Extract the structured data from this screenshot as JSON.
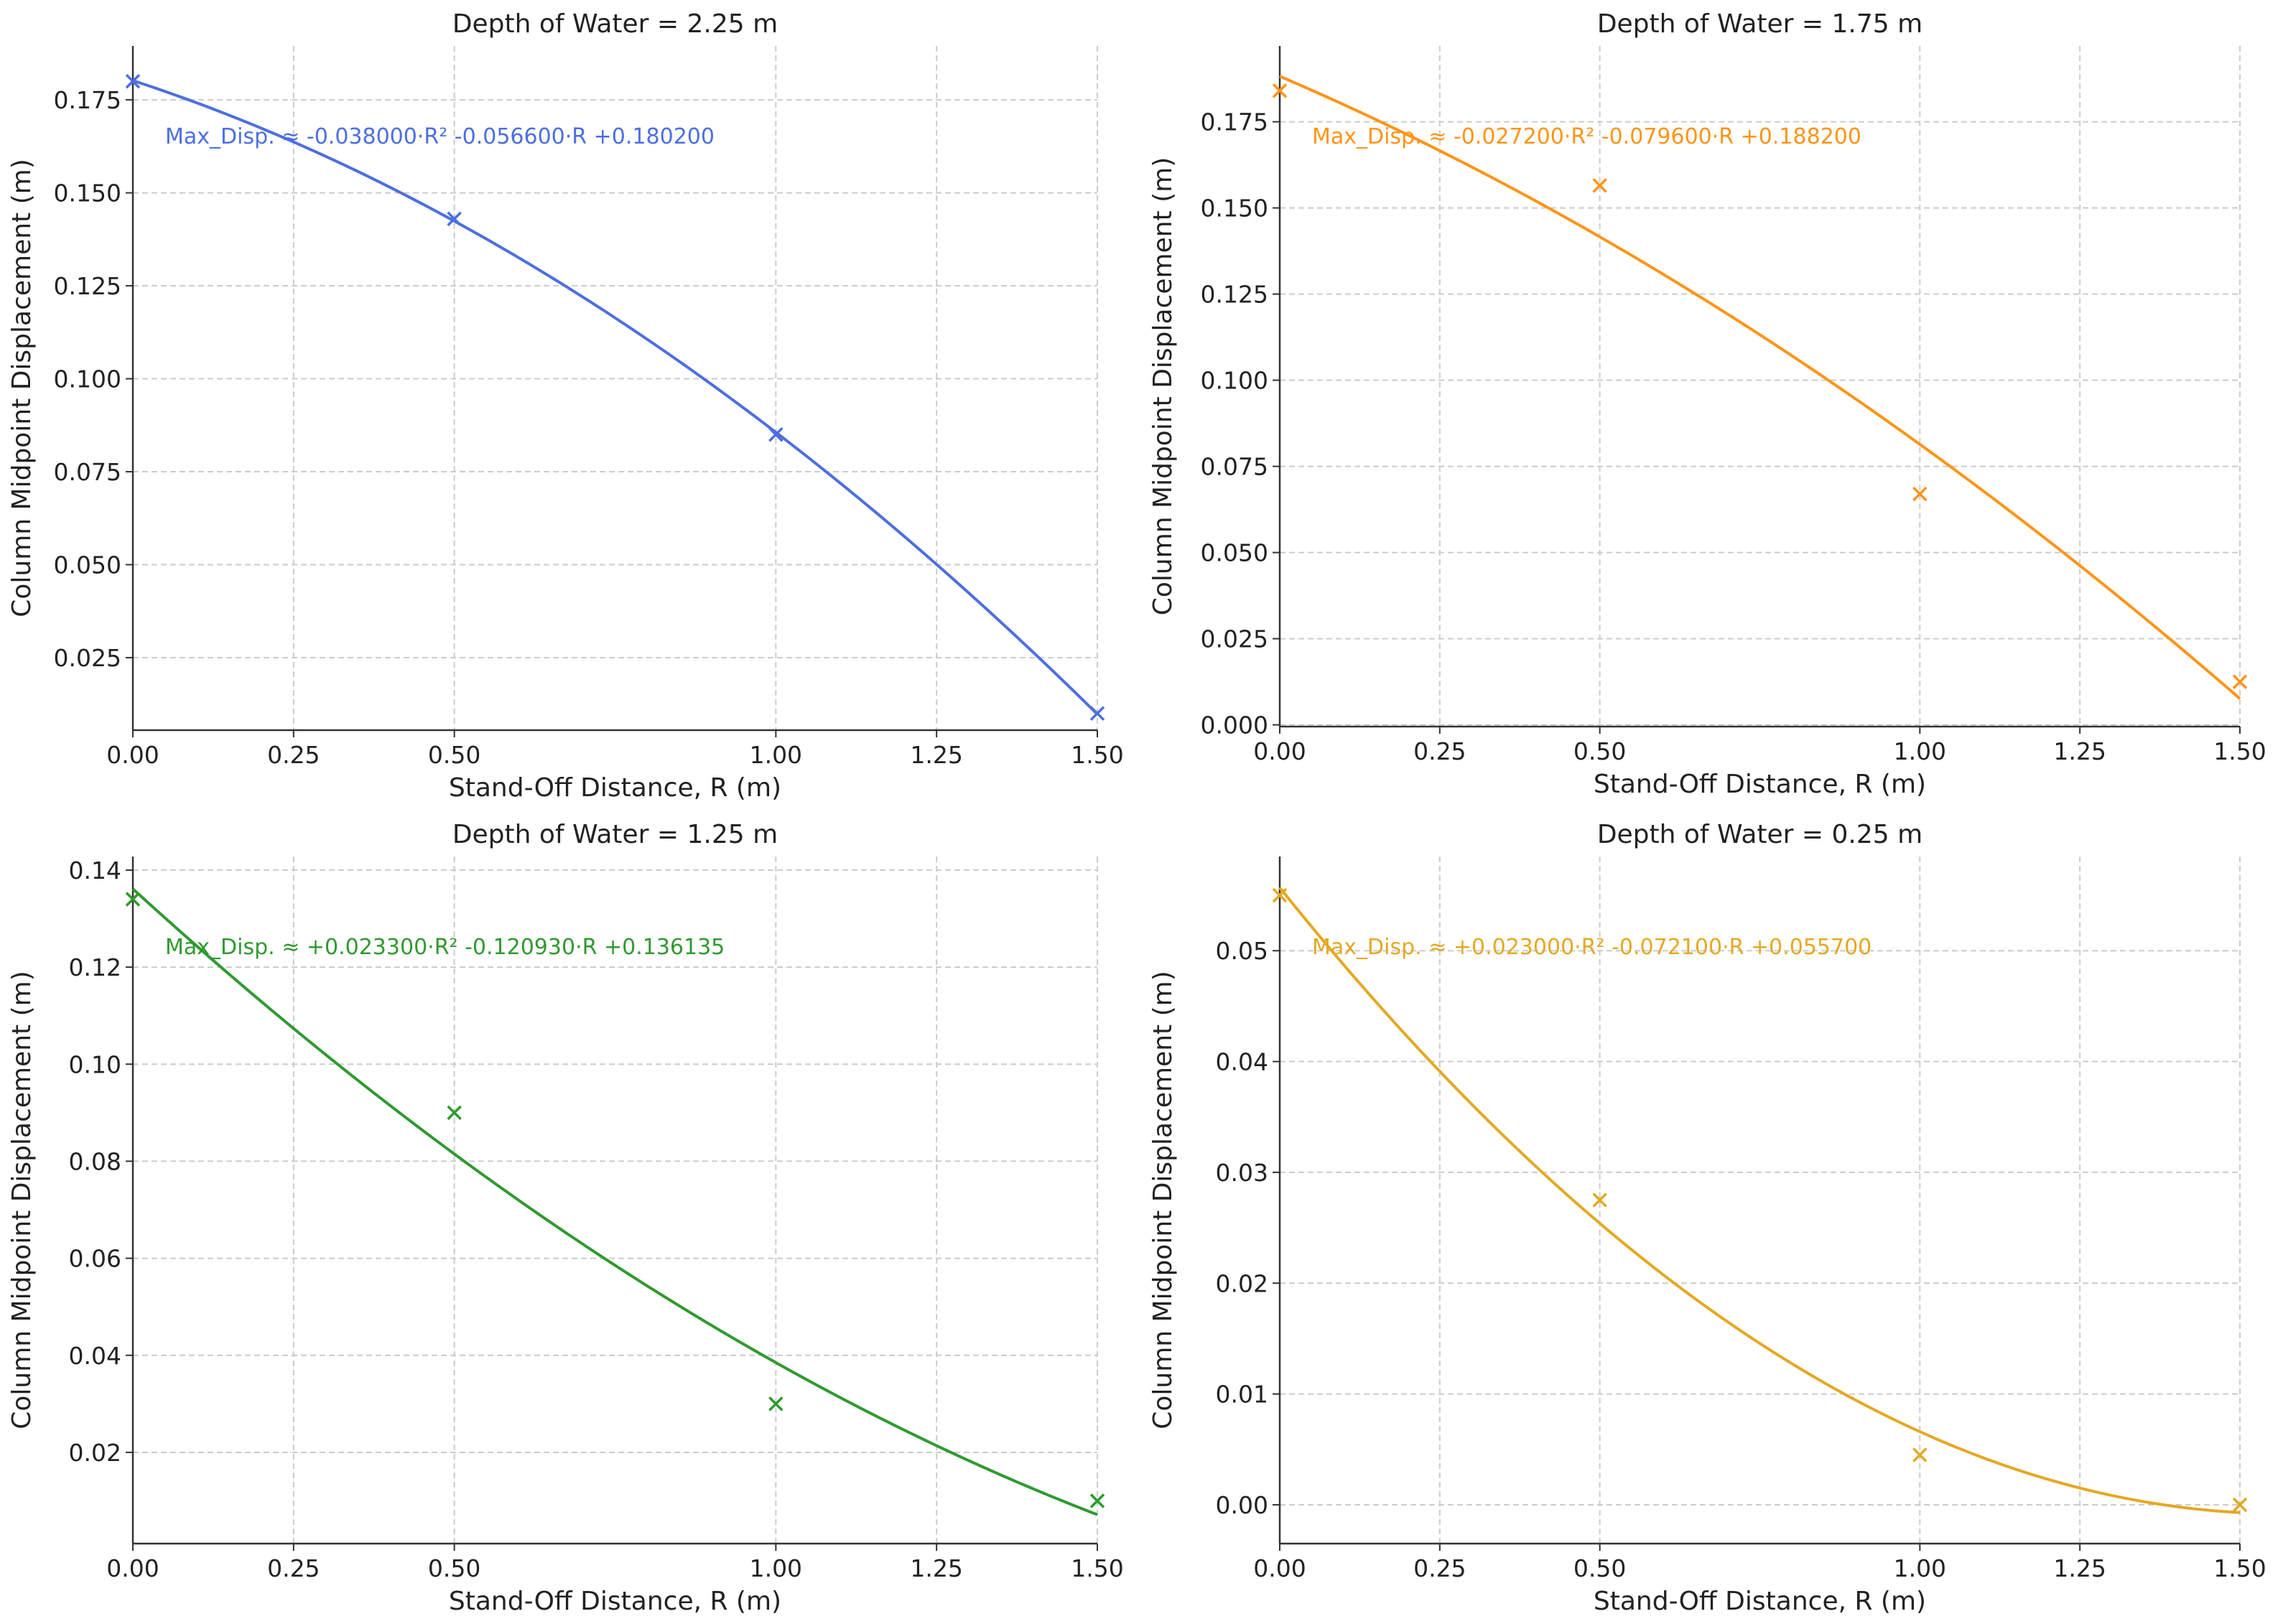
{
  "chart_data": [
    {
      "type": "scatter",
      "title": "Depth of Water = 2.25 m",
      "xlabel": "Stand-Off Distance, R (m)",
      "ylabel": "Column Midpoint Displacement (m)",
      "color": "#4c6fe0",
      "xlim": [
        0,
        1.5
      ],
      "ylim": [
        0.0055,
        0.1895
      ],
      "xticks": [
        0,
        0.25,
        0.5,
        1.0,
        1.25,
        1.5
      ],
      "xtick_labels": [
        "0.00",
        "0.25",
        "0.50",
        "1.00",
        "1.25",
        "1.50"
      ],
      "yticks": [
        0.025,
        0.05,
        0.075,
        0.1,
        0.125,
        0.15,
        0.175
      ],
      "ytick_labels": [
        "0.025",
        "0.050",
        "0.075",
        "0.100",
        "0.125",
        "0.150",
        "0.175"
      ],
      "points": [
        {
          "x": 0.0,
          "y": 0.18
        },
        {
          "x": 0.5,
          "y": 0.143
        },
        {
          "x": 1.0,
          "y": 0.085
        },
        {
          "x": 1.5,
          "y": 0.01
        }
      ],
      "fit": {
        "a": -0.038,
        "b": -0.0566,
        "c": 0.1802
      },
      "equation": "Max_Disp. ≈ -0.038000·R² -0.056600·R +0.180200"
    },
    {
      "type": "scatter",
      "title": "Depth of Water = 1.75 m",
      "xlabel": "Stand-Off Distance, R (m)",
      "ylabel": "Column Midpoint Displacement (m)",
      "color": "#ff9416",
      "xlim": [
        0,
        1.5
      ],
      "ylim": [
        -0.0005,
        0.197
      ],
      "xticks": [
        0,
        0.25,
        0.5,
        1.0,
        1.25,
        1.5
      ],
      "xtick_labels": [
        "0.00",
        "0.25",
        "0.50",
        "1.00",
        "1.25",
        "1.50"
      ],
      "yticks": [
        0.0,
        0.025,
        0.05,
        0.075,
        0.1,
        0.125,
        0.15,
        0.175
      ],
      "ytick_labels": [
        "0.000",
        "0.025",
        "0.050",
        "0.075",
        "0.100",
        "0.125",
        "0.150",
        "0.175"
      ],
      "points": [
        {
          "x": 0.0,
          "y": 0.184
        },
        {
          "x": 0.5,
          "y": 0.1565
        },
        {
          "x": 1.0,
          "y": 0.067
        },
        {
          "x": 1.5,
          "y": 0.0125
        }
      ],
      "fit": {
        "a": -0.0272,
        "b": -0.0796,
        "c": 0.1882
      },
      "equation": "Max_Disp. ≈ -0.027200·R² -0.079600·R +0.188200"
    },
    {
      "type": "scatter",
      "title": "Depth of Water = 1.25 m",
      "xlabel": "Stand-Off Distance, R (m)",
      "ylabel": "Column Midpoint Displacement (m)",
      "color": "#2f9a2f",
      "xlim": [
        0,
        1.5
      ],
      "ylim": [
        0.0012,
        0.1428
      ],
      "xticks": [
        0,
        0.25,
        0.5,
        1.0,
        1.25,
        1.5
      ],
      "xtick_labels": [
        "0.00",
        "0.25",
        "0.50",
        "1.00",
        "1.25",
        "1.50"
      ],
      "yticks": [
        0.02,
        0.04,
        0.06,
        0.08,
        0.1,
        0.12,
        0.14
      ],
      "ytick_labels": [
        "0.02",
        "0.04",
        "0.06",
        "0.08",
        "0.10",
        "0.12",
        "0.14"
      ],
      "points": [
        {
          "x": 0.0,
          "y": 0.134
        },
        {
          "x": 0.5,
          "y": 0.09
        },
        {
          "x": 1.0,
          "y": 0.03
        },
        {
          "x": 1.5,
          "y": 0.01
        }
      ],
      "fit": {
        "a": 0.0233,
        "b": -0.12093,
        "c": 0.136135
      },
      "equation": "Max_Disp. ≈ +0.023300·R² -0.120930·R +0.136135"
    },
    {
      "type": "scatter",
      "title": "Depth of Water = 0.25 m",
      "xlabel": "Stand-Off Distance, R (m)",
      "ylabel": "Column Midpoint Displacement (m)",
      "color": "#e5a823",
      "xlim": [
        0,
        1.5
      ],
      "ylim": [
        -0.0035,
        0.0585
      ],
      "xticks": [
        0,
        0.25,
        0.5,
        1.0,
        1.25,
        1.5
      ],
      "xtick_labels": [
        "0.00",
        "0.25",
        "0.50",
        "1.00",
        "1.25",
        "1.50"
      ],
      "yticks": [
        0.0,
        0.01,
        0.02,
        0.03,
        0.04,
        0.05
      ],
      "ytick_labels": [
        "0.00",
        "0.01",
        "0.02",
        "0.03",
        "0.04",
        "0.05"
      ],
      "points": [
        {
          "x": 0.0,
          "y": 0.055
        },
        {
          "x": 0.5,
          "y": 0.0275
        },
        {
          "x": 1.0,
          "y": 0.0045
        },
        {
          "x": 1.5,
          "y": 0.0
        }
      ],
      "fit": {
        "a": 0.023,
        "b": -0.0721,
        "c": 0.0557
      },
      "equation": "Max_Disp. ≈ +0.023000·R² -0.072100·R +0.055700"
    }
  ]
}
